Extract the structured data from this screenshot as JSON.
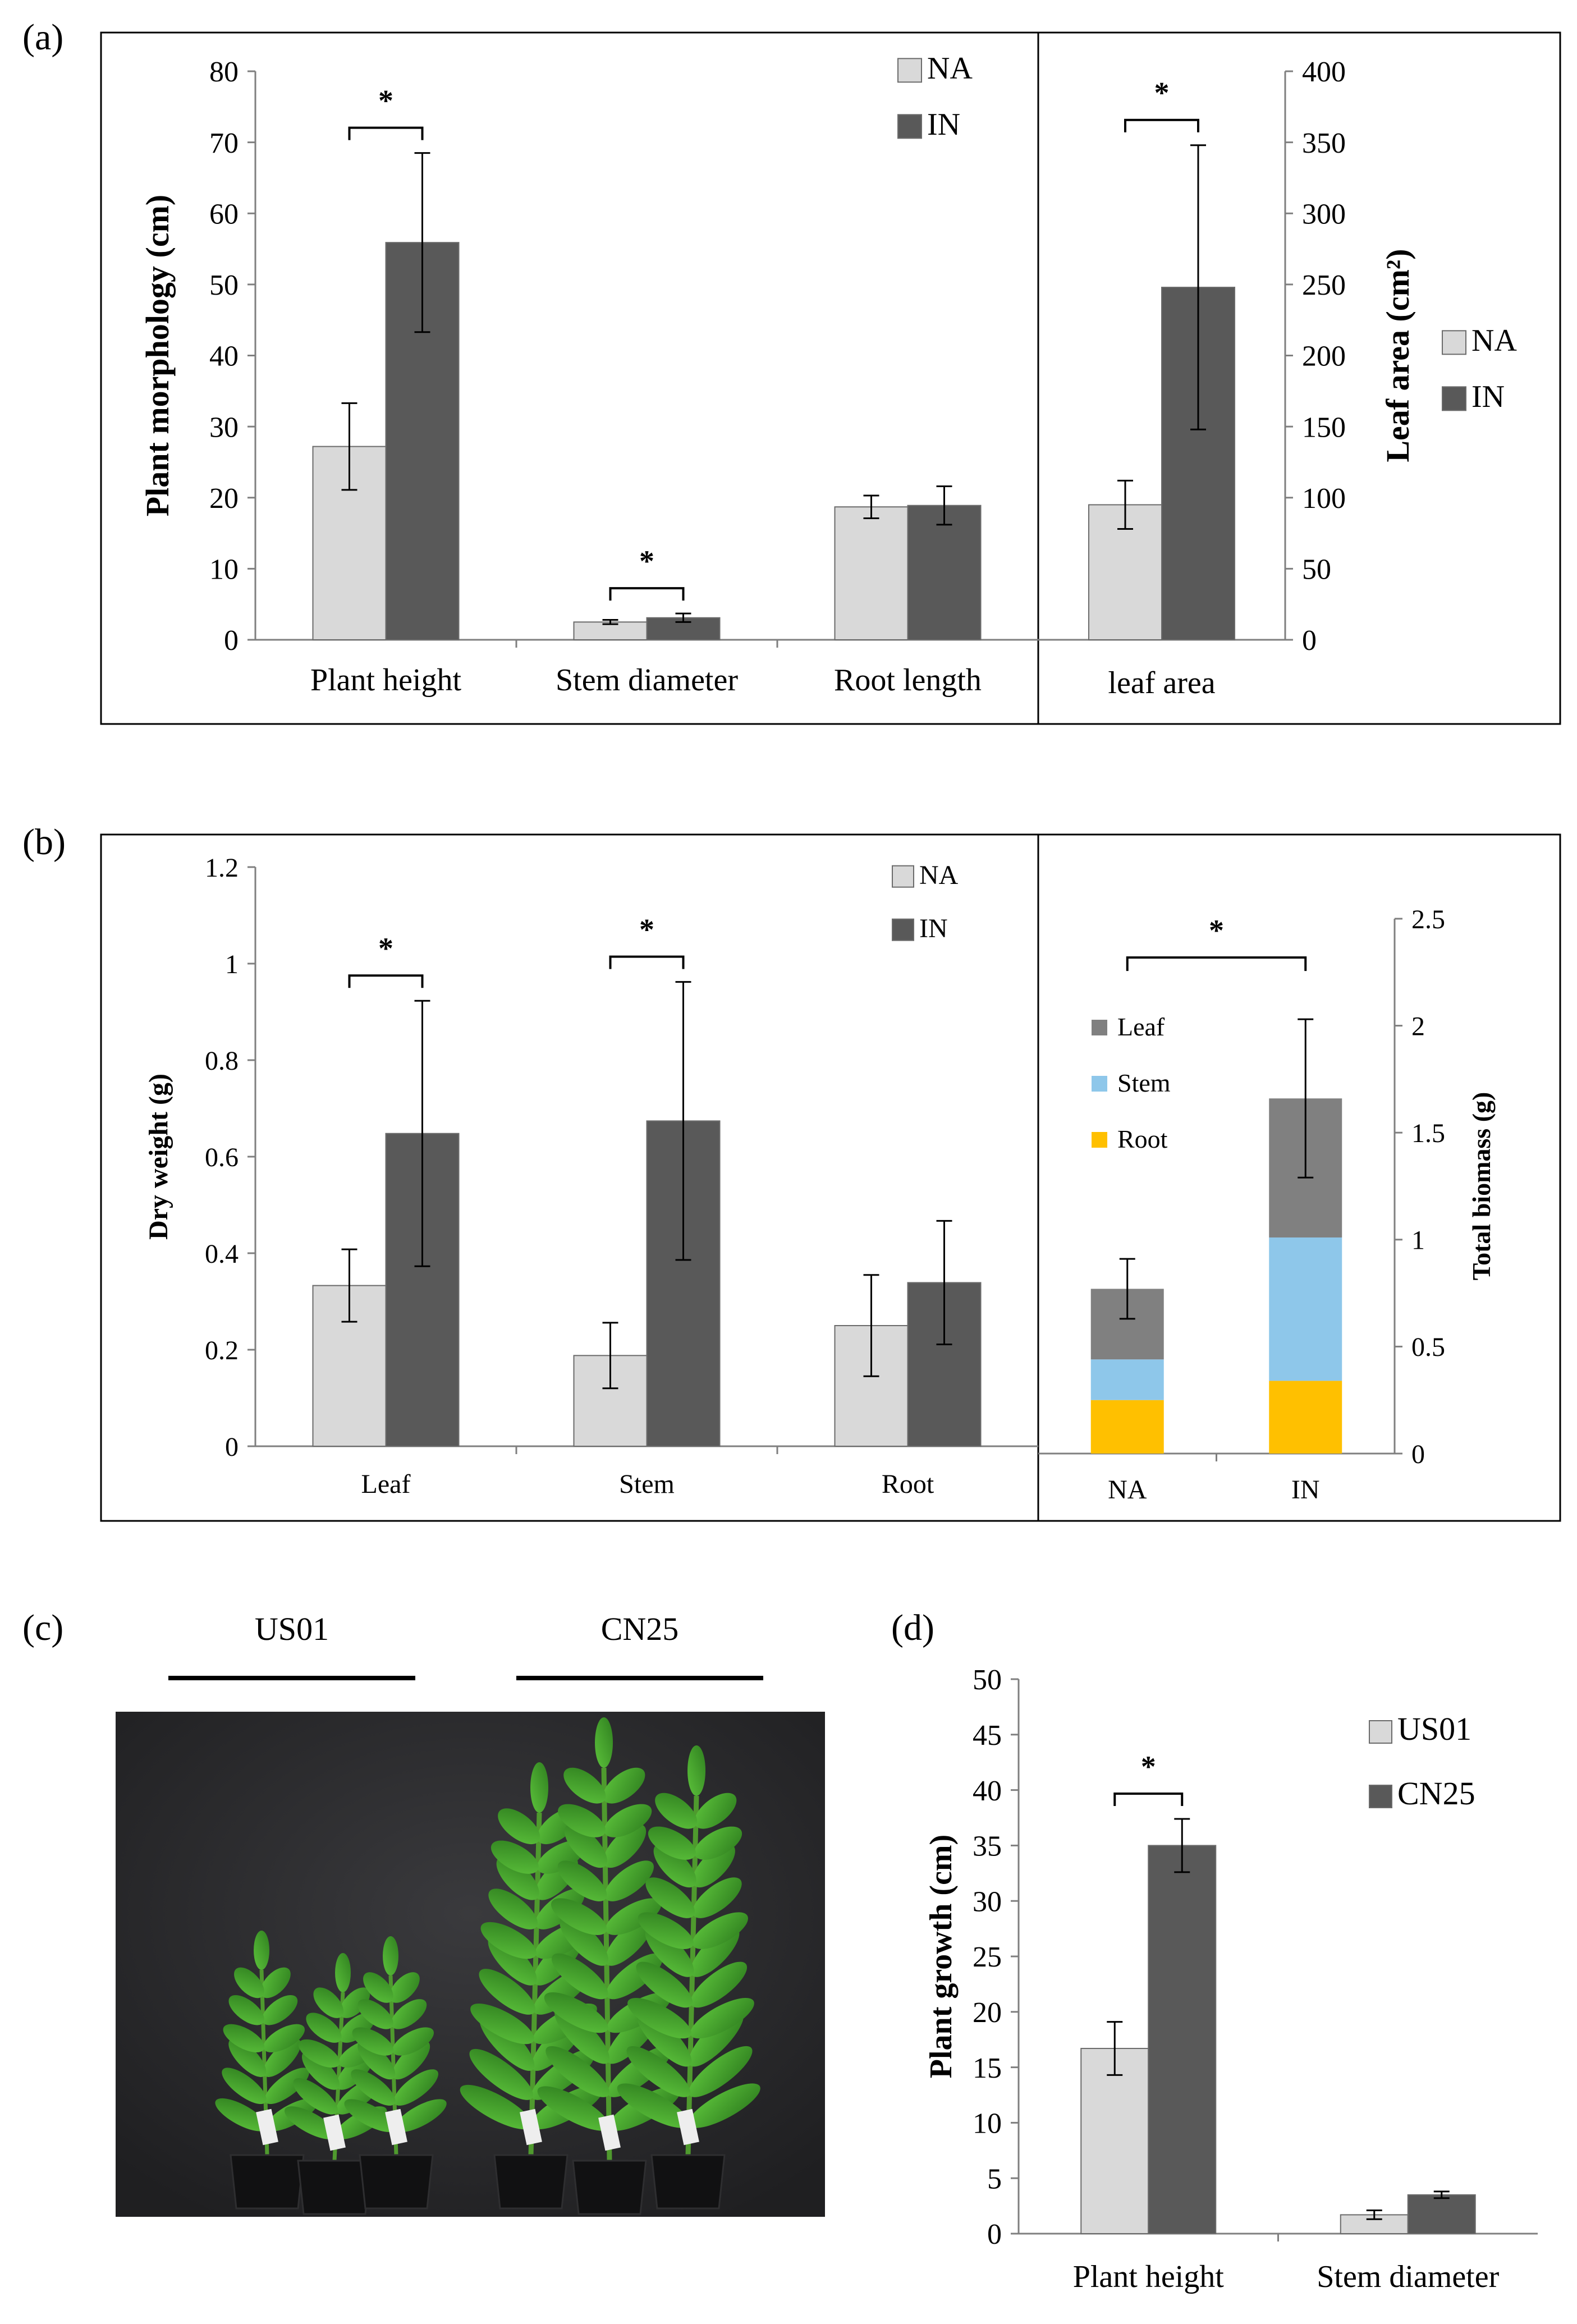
{
  "panel_labels": [
    "(a)",
    "(b)",
    "(c)",
    "(d)"
  ],
  "colors": {
    "NA": "#d9d9d9",
    "IN": "#595959",
    "US01": "#d9d9d9",
    "CN25": "#595959",
    "Leaf": "#808080",
    "Stem": "#8ec7ea",
    "Root": "#ffc000",
    "photo_background": "#2a2a2c",
    "foliage": "#3f9a2c"
  },
  "panel_c": {
    "label": "(c)",
    "group_labels": [
      "US01",
      "CN25"
    ]
  },
  "chart_data": [
    {
      "id": "a-main",
      "type": "bar",
      "categories": [
        "Plant height",
        "Stem diameter",
        "Root length"
      ],
      "series": [
        {
          "name": "NA",
          "values": [
            27.2,
            2.5,
            18.7
          ],
          "errors": [
            6.1,
            0.3,
            1.6
          ]
        },
        {
          "name": "IN",
          "values": [
            55.9,
            3.1,
            18.9
          ],
          "errors": [
            12.6,
            0.6,
            2.7
          ]
        }
      ],
      "ylabel": "Plant morphology (cm)",
      "ylim": [
        0,
        80
      ],
      "yticks": [
        "0",
        "10",
        "20",
        "30",
        "40",
        "50",
        "60",
        "70",
        "80"
      ],
      "significance": [
        {
          "category": "Plant height",
          "label": "*"
        },
        {
          "category": "Stem diameter",
          "label": "*"
        }
      ],
      "legend": [
        "NA",
        "IN"
      ],
      "legend_position": "top-right"
    },
    {
      "id": "a-leaf",
      "type": "bar",
      "categories": [
        "leaf area"
      ],
      "series": [
        {
          "name": "NA",
          "values": [
            95
          ],
          "errors": [
            17
          ]
        },
        {
          "name": "IN",
          "values": [
            248
          ],
          "errors": [
            100
          ]
        }
      ],
      "ylabel": "Leaf area (cm²)",
      "ylim": [
        0,
        400
      ],
      "yticks": [
        "0",
        "50",
        "100",
        "150",
        "200",
        "250",
        "300",
        "350",
        "400"
      ],
      "y_axis_side": "right",
      "significance": [
        {
          "category": "leaf area",
          "label": "*"
        }
      ],
      "legend": [
        "NA",
        "IN"
      ],
      "legend_position": "right"
    },
    {
      "id": "b-main",
      "type": "bar",
      "categories": [
        "Leaf",
        "Stem",
        "Root"
      ],
      "series": [
        {
          "name": "NA",
          "values": [
            0.333,
            0.188,
            0.25
          ],
          "errors": [
            0.075,
            0.068,
            0.105
          ]
        },
        {
          "name": "IN",
          "values": [
            0.648,
            0.674,
            0.339
          ],
          "errors": [
            0.275,
            0.288,
            0.128
          ]
        }
      ],
      "ylabel": "Dry weight (g)",
      "ylim": [
        0,
        1.2
      ],
      "yticks": [
        "0",
        "0.2",
        "0.4",
        "0.6",
        "0.8",
        "1",
        "1.2"
      ],
      "significance": [
        {
          "category": "Leaf",
          "label": "*"
        },
        {
          "category": "Stem",
          "label": "*"
        }
      ],
      "legend": [
        "NA",
        "IN"
      ],
      "legend_position": "top-right"
    },
    {
      "id": "b-total",
      "type": "bar",
      "stacked": true,
      "categories": [
        "NA",
        "IN"
      ],
      "series": [
        {
          "name": "Root",
          "values": [
            0.25,
            0.34
          ]
        },
        {
          "name": "Stem",
          "values": [
            0.19,
            0.67
          ]
        },
        {
          "name": "Leaf",
          "values": [
            0.33,
            0.65
          ]
        }
      ],
      "errors": [
        0.14,
        0.37
      ],
      "ylabel": "Total biomass (g)",
      "ylim": [
        0,
        2.5
      ],
      "yticks": [
        "0",
        "0.5",
        "1",
        "1.5",
        "2",
        "2.5"
      ],
      "y_axis_side": "right",
      "significance": [
        {
          "between": [
            "NA",
            "IN"
          ],
          "label": "*"
        }
      ],
      "legend": [
        "Leaf",
        "Stem",
        "Root"
      ],
      "legend_position": "left"
    },
    {
      "id": "d",
      "type": "bar",
      "categories": [
        "Plant height",
        "Stem diameter"
      ],
      "series": [
        {
          "name": "US01",
          "values": [
            16.7,
            1.7
          ],
          "errors": [
            2.4,
            0.4
          ]
        },
        {
          "name": "CN25",
          "values": [
            35.0,
            3.5
          ],
          "errors": [
            2.4,
            0.3
          ]
        }
      ],
      "ylabel": "Plant growth (cm)",
      "ylim": [
        0,
        50
      ],
      "yticks": [
        "0",
        "5",
        "10",
        "15",
        "20",
        "25",
        "30",
        "35",
        "40",
        "45",
        "50"
      ],
      "significance": [
        {
          "category": "Plant height",
          "label": "*"
        }
      ],
      "legend": [
        "US01",
        "CN25"
      ],
      "legend_position": "top-right"
    }
  ]
}
